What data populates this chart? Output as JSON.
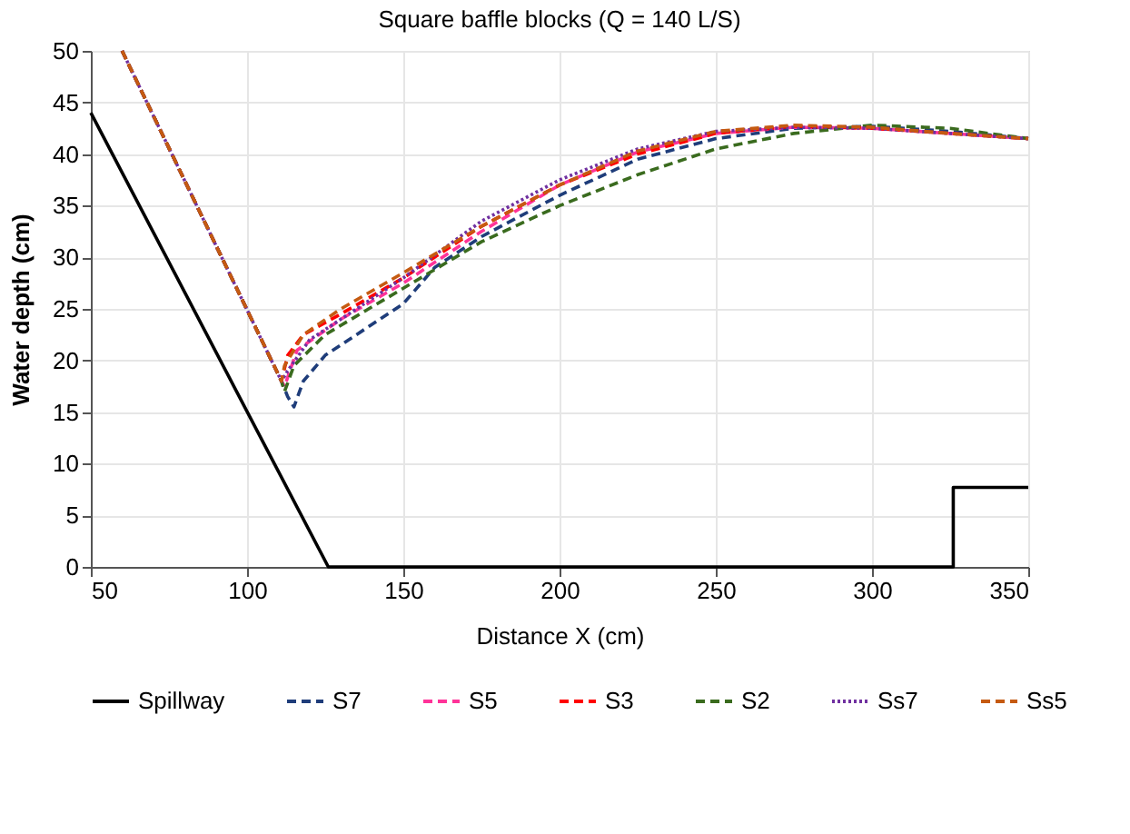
{
  "chart_data": {
    "type": "line",
    "title": "Square baffle blocks (Q = 140 L/S)",
    "xlabel": "Distance X (cm)",
    "ylabel": "Water depth (cm)",
    "xlim": [
      50,
      350
    ],
    "xticks": [
      50,
      100,
      150,
      200,
      250,
      300,
      350
    ],
    "ylim": [
      0,
      50
    ],
    "yticks": [
      0,
      5,
      10,
      15,
      20,
      25,
      30,
      35,
      40,
      45,
      50
    ],
    "grid": true,
    "legend": "bottom",
    "series": [
      {
        "name": "Spillway",
        "color": "#000000",
        "line_style": "solid",
        "x": [
          50,
          126,
          326,
          326,
          350
        ],
        "values": [
          44,
          0,
          0,
          7.7,
          7.7
        ]
      },
      {
        "name": "S7",
        "color": "#1f3d7a",
        "line_style": "dashed",
        "x": [
          60,
          111,
          113,
          115,
          118,
          125,
          140,
          150,
          160,
          175,
          200,
          225,
          250,
          275,
          300,
          325,
          350
        ],
        "values": [
          50,
          18,
          16.5,
          15.5,
          18,
          20.5,
          23.5,
          25.5,
          29,
          32,
          36,
          39.5,
          41.5,
          42.5,
          42.7,
          42.2,
          41.5
        ]
      },
      {
        "name": "S5",
        "color": "#ff3399",
        "line_style": "dashed",
        "x": [
          60,
          111,
          112,
          116,
          130,
          150,
          175,
          200,
          225,
          250,
          275,
          300,
          325,
          350
        ],
        "values": [
          50,
          18,
          17.5,
          21,
          24,
          27.5,
          32.5,
          37,
          40.2,
          42,
          42.6,
          42.5,
          42,
          41.5
        ]
      },
      {
        "name": "S3",
        "color": "#ff0000",
        "line_style": "dashed",
        "x": [
          60,
          111,
          113,
          118,
          130,
          150,
          175,
          200,
          225,
          250,
          275,
          300,
          325,
          350
        ],
        "values": [
          50,
          18,
          20.5,
          22.5,
          24.5,
          28,
          33,
          37,
          40,
          42,
          42.7,
          42.5,
          42,
          41.5
        ]
      },
      {
        "name": "S2",
        "color": "#3a6b1e",
        "line_style": "dashed",
        "x": [
          60,
          111,
          112,
          115,
          125,
          150,
          175,
          200,
          225,
          250,
          275,
          300,
          325,
          350
        ],
        "values": [
          50,
          18,
          17,
          19.5,
          22.5,
          27,
          31.5,
          35,
          38,
          40.5,
          42,
          42.8,
          42.5,
          41.5
        ]
      },
      {
        "name": "Ss7",
        "color": "#7030a0",
        "line_style": "dotted",
        "x": [
          60,
          111,
          113,
          120,
          130,
          150,
          175,
          200,
          225,
          250,
          275,
          300,
          325,
          350
        ],
        "values": [
          50,
          18,
          19,
          22,
          24,
          28,
          33.5,
          37.5,
          40.5,
          42.2,
          42.6,
          42.5,
          42,
          41.5
        ]
      },
      {
        "name": "Ss5",
        "color": "#c55a11",
        "line_style": "dashed",
        "x": [
          60,
          111,
          112,
          118,
          130,
          150,
          175,
          200,
          225,
          250,
          275,
          300,
          325,
          350
        ],
        "values": [
          50,
          18,
          19.5,
          22.5,
          25,
          28.5,
          33,
          37,
          40.3,
          42.2,
          42.8,
          42.6,
          42,
          41.5
        ]
      }
    ]
  }
}
